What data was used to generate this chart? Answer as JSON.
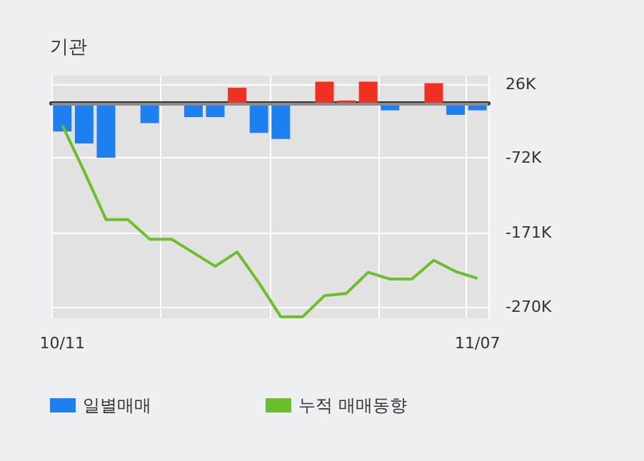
{
  "chart_data": {
    "type": "bar",
    "title": "기관",
    "categories": [
      "10/11",
      null,
      null,
      null,
      null,
      null,
      null,
      null,
      null,
      null,
      null,
      null,
      null,
      null,
      null,
      null,
      null,
      null,
      null,
      "11/07"
    ],
    "series": [
      {
        "name": "일별매매",
        "color": "#1e7ff0",
        "colors": [
          "#1e7ff0",
          "#1e7ff0",
          "#1e7ff0",
          "#1e7ff0",
          "#1e7ff0",
          "#1e7ff0",
          "#1e7ff0",
          "#1e7ff0",
          "#f03020",
          "#1e7ff0",
          "#1e7ff0",
          "#1e7ff0",
          "#f03020",
          "#f03020",
          "#f03020",
          "#1e7ff0",
          "#1e7ff0",
          "#f03020",
          "#1e7ff0",
          "#1e7ff0"
        ],
        "values": [
          -37,
          -53,
          -72,
          null,
          -26,
          null,
          -18,
          -18,
          21,
          -39,
          -47,
          null,
          29,
          4,
          29,
          -9,
          null,
          27,
          -15,
          -9
        ]
      },
      {
        "name": "누적 매매동향",
        "type": "line",
        "color": "#6cbf2a",
        "values": [
          -29,
          -90,
          -154,
          -154,
          -180,
          -180,
          -198,
          -216,
          -197,
          -238,
          -283,
          -283,
          -255,
          -252,
          -224,
          -233,
          -233,
          -208,
          -223,
          -232
        ]
      }
    ],
    "ylim": [
      -285,
      37
    ],
    "yticks": [
      {
        "value": 26,
        "label": "26K"
      },
      {
        "value": -72,
        "label": "-72K"
      },
      {
        "value": -171,
        "label": "-171K"
      },
      {
        "value": -270,
        "label": "-270K"
      }
    ],
    "ref_lines": [
      {
        "axis": "y",
        "value": 0,
        "color": "#8c8c8c"
      }
    ],
    "grid": true,
    "legend": "bottom left",
    "marker": "none",
    "line_style": "solid"
  }
}
